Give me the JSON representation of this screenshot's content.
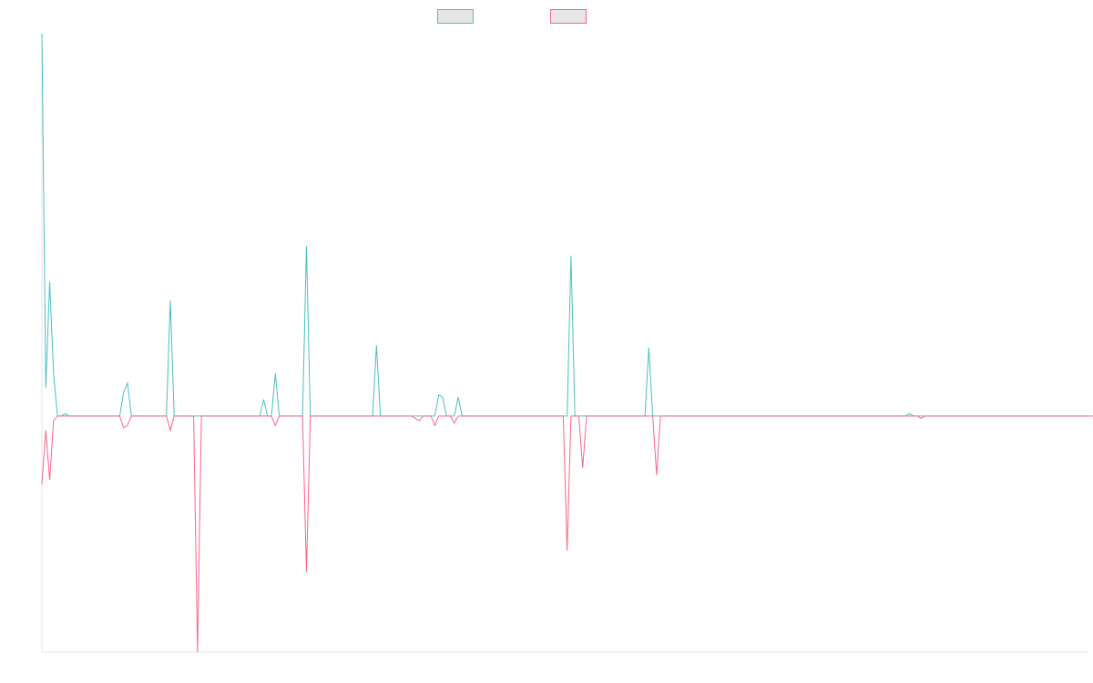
{
  "chart_data": {
    "type": "line",
    "title": "",
    "xlabel": "",
    "ylabel": "",
    "ylim": [
      -100,
      162
    ],
    "legend": "top-center",
    "grid": false,
    "series": [
      {
        "name": "",
        "color": "#4bc0c0",
        "values": [
          162,
          12,
          57,
          18,
          0,
          0,
          1,
          0,
          0,
          0,
          0,
          0,
          0,
          0,
          0,
          0,
          0,
          0,
          0,
          0,
          0,
          10,
          14,
          0,
          0,
          0,
          0,
          0,
          0,
          0,
          0,
          0,
          0,
          49,
          0,
          0,
          0,
          0,
          0,
          0,
          0,
          0,
          0,
          0,
          0,
          0,
          0,
          0,
          0,
          0,
          0,
          0,
          0,
          0,
          0,
          0,
          0,
          7,
          0,
          0,
          18,
          0,
          0,
          0,
          0,
          0,
          0,
          0,
          72,
          0,
          0,
          0,
          0,
          0,
          0,
          0,
          0,
          0,
          0,
          0,
          0,
          0,
          0,
          0,
          0,
          0,
          30,
          0,
          0,
          0,
          0,
          0,
          0,
          0,
          0,
          0,
          0,
          0,
          0,
          0,
          0,
          0,
          9,
          8,
          0,
          0,
          0,
          8,
          0,
          0,
          0,
          0,
          0,
          0,
          0,
          0,
          0,
          0,
          0,
          0,
          0,
          0,
          0,
          0,
          0,
          0,
          0,
          0,
          0,
          0,
          0,
          0,
          0,
          0,
          0,
          0,
          68,
          0,
          0,
          0,
          0,
          0,
          0,
          0,
          0,
          0,
          0,
          0,
          0,
          0,
          0,
          0,
          0,
          0,
          0,
          0,
          29,
          0,
          0,
          0,
          0,
          0,
          0,
          0,
          0,
          0,
          0,
          0,
          0,
          0,
          0,
          0,
          0,
          0,
          0,
          0,
          0,
          0,
          0,
          0,
          0,
          0,
          0,
          0,
          0,
          0,
          0,
          0,
          0,
          0,
          0,
          0,
          0,
          0,
          0,
          0,
          0,
          0,
          0,
          0,
          0,
          0,
          0,
          0,
          0,
          0,
          0,
          0,
          0,
          0,
          0,
          0,
          0,
          0,
          0,
          0,
          0,
          0,
          0,
          0,
          0,
          0,
          0,
          1,
          0,
          0,
          0,
          0,
          0,
          0,
          0,
          0,
          0,
          0,
          0,
          0,
          0,
          0,
          0,
          0,
          0,
          0,
          0,
          0,
          0,
          0,
          0,
          0,
          0,
          0,
          0,
          0,
          0,
          0,
          0,
          0,
          0,
          0,
          0,
          0,
          0,
          0,
          0,
          0,
          0,
          0,
          0,
          0,
          0,
          0
        ]
      },
      {
        "name": "",
        "color": "#ff6384",
        "values": [
          -29,
          -6,
          -27,
          -2,
          0,
          0,
          0,
          0,
          0,
          0,
          0,
          0,
          0,
          0,
          0,
          0,
          0,
          0,
          0,
          0,
          0,
          -5,
          -4,
          0,
          0,
          0,
          0,
          0,
          0,
          0,
          0,
          0,
          0,
          -6,
          0,
          0,
          0,
          0,
          0,
          0,
          -100,
          0,
          0,
          0,
          0,
          0,
          0,
          0,
          0,
          0,
          0,
          0,
          0,
          0,
          0,
          0,
          0,
          0,
          0,
          0,
          -4,
          0,
          0,
          0,
          0,
          0,
          0,
          0,
          -66,
          0,
          0,
          0,
          0,
          0,
          0,
          0,
          0,
          0,
          0,
          0,
          0,
          0,
          0,
          0,
          0,
          0,
          0,
          0,
          0,
          0,
          0,
          0,
          0,
          0,
          0,
          0,
          -1,
          -2,
          0,
          0,
          0,
          -4,
          0,
          0,
          0,
          0,
          -3,
          0,
          0,
          0,
          0,
          0,
          0,
          0,
          0,
          0,
          0,
          0,
          0,
          0,
          0,
          0,
          0,
          0,
          0,
          0,
          0,
          0,
          0,
          0,
          0,
          0,
          0,
          0,
          0,
          -57,
          0,
          0,
          0,
          -22,
          0,
          0,
          0,
          0,
          0,
          0,
          0,
          0,
          0,
          0,
          0,
          0,
          0,
          0,
          0,
          0,
          0,
          0,
          -25,
          0,
          0,
          0,
          0,
          0,
          0,
          0,
          0,
          0,
          0,
          0,
          0,
          0,
          0,
          0,
          0,
          0,
          0,
          0,
          0,
          0,
          0,
          0,
          0,
          0,
          0,
          0,
          0,
          0,
          0,
          0,
          0,
          0,
          0,
          0,
          0,
          0,
          0,
          0,
          0,
          0,
          0,
          0,
          0,
          0,
          0,
          0,
          0,
          0,
          0,
          0,
          0,
          0,
          0,
          0,
          0,
          0,
          0,
          0,
          0,
          0,
          0,
          0,
          0,
          0,
          0,
          0,
          -1,
          0,
          0,
          0,
          0,
          0,
          0,
          0,
          0,
          0,
          0,
          0,
          0,
          0,
          0,
          0,
          0,
          0,
          0,
          0,
          0,
          0,
          0,
          0,
          0,
          0,
          0,
          0,
          0,
          0,
          0,
          0,
          0,
          0,
          0,
          0,
          0,
          0,
          0,
          0,
          0,
          0,
          0,
          0,
          0,
          0,
          0,
          0,
          0,
          0
        ]
      }
    ]
  }
}
